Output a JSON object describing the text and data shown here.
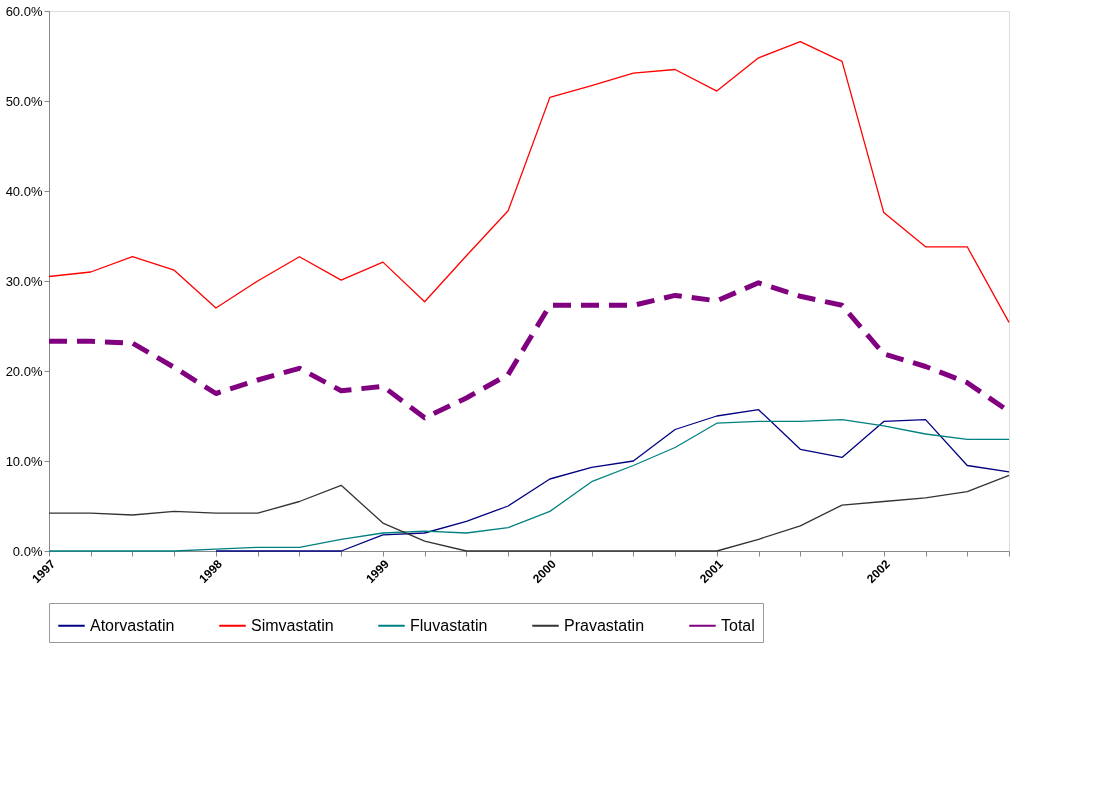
{
  "chart_data": {
    "type": "line",
    "categories": [
      "1997",
      null,
      null,
      null,
      "1998",
      null,
      null,
      null,
      "1999",
      null,
      null,
      null,
      "2000",
      null,
      null,
      null,
      "2001",
      null,
      null,
      null,
      "2002",
      null,
      null,
      null
    ],
    "series": [
      {
        "name": "Atorvastatin",
        "color": "#000080",
        "line_style": "solid",
        "values": [
          null,
          null,
          null,
          null,
          0,
          0,
          0,
          0,
          1.8,
          2.0,
          3.3,
          5.0,
          8.0,
          9.3,
          10.0,
          13.5,
          15.0,
          15.7,
          11.3,
          10.4,
          14.4,
          14.6,
          9.5,
          8.8
        ]
      },
      {
        "name": "Simvastatin",
        "color": "#ff0000",
        "line_style": "solid",
        "values": [
          30.5,
          31.0,
          32.7,
          31.2,
          27.0,
          30.0,
          32.7,
          30.1,
          32.1,
          27.7,
          32.8,
          37.8,
          50.4,
          51.7,
          53.1,
          53.5,
          51.1,
          54.8,
          56.6,
          54.4,
          37.6,
          33.8,
          33.8,
          25.4
        ]
      },
      {
        "name": "Fluvastatin",
        "color": "#008080",
        "line_style": "solid",
        "values": [
          0,
          0,
          0,
          0,
          0.2,
          0.4,
          0.4,
          1.3,
          2.0,
          2.2,
          2.0,
          2.6,
          4.4,
          7.7,
          9.5,
          11.5,
          14.2,
          14.4,
          14.4,
          14.6,
          13.9,
          13.0,
          12.4,
          12.4
        ]
      },
      {
        "name": "Pravastatin",
        "color": "#333333",
        "line_style": "solid",
        "values": [
          4.2,
          4.2,
          4.0,
          4.4,
          4.2,
          4.2,
          5.5,
          7.3,
          3.1,
          1.1,
          0,
          0,
          0,
          0,
          0,
          0,
          0,
          1.3,
          2.8,
          5.1,
          5.5,
          5.9,
          6.6,
          8.4
        ]
      },
      {
        "name": "Total",
        "color": "#800080",
        "line_style": "dashed",
        "values": [
          23.3,
          23.3,
          23.1,
          20.4,
          17.5,
          19.0,
          20.3,
          17.8,
          18.3,
          14.8,
          17.0,
          19.6,
          27.3,
          27.3,
          27.3,
          28.4,
          27.8,
          29.8,
          28.3,
          27.3,
          21.9,
          20.5,
          18.7,
          15.5
        ]
      }
    ],
    "ylim": [
      0,
      60
    ],
    "yticks": [
      {
        "value": 0,
        "label": "0.0%"
      },
      {
        "value": 10,
        "label": "10.0%"
      },
      {
        "value": 20,
        "label": "20.0%"
      },
      {
        "value": 30,
        "label": "30.0%"
      },
      {
        "value": 40,
        "label": "40.0%"
      },
      {
        "value": 50,
        "label": "50.0%"
      },
      {
        "value": 60,
        "label": "60.0%"
      }
    ],
    "grid": false,
    "legend": "bottom",
    "marker": "none"
  }
}
